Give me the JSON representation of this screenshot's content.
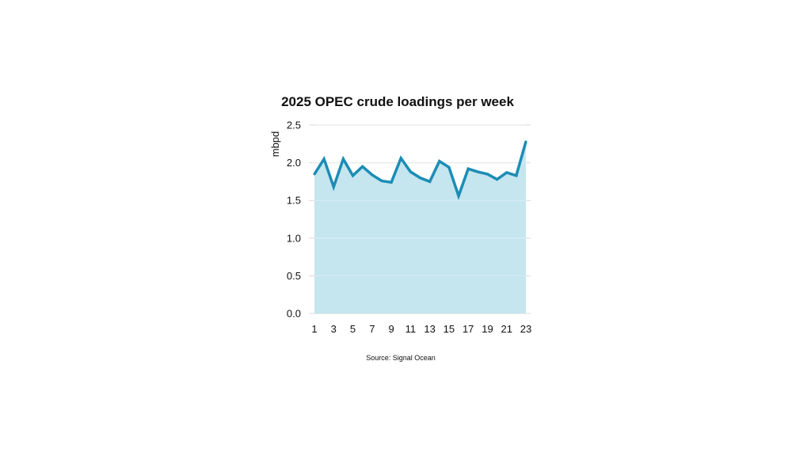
{
  "colors": {
    "line": "#1b8db5",
    "area": "#c5e5ef",
    "grid": "#d9d9d9",
    "text": "#111111"
  },
  "chart_data": {
    "type": "area",
    "title": "2025 OPEC crude loadings per week",
    "xlabel": "",
    "ylabel": "mbpd",
    "source": "Source: Signal Ocean",
    "x": [
      1,
      2,
      3,
      4,
      5,
      6,
      7,
      8,
      9,
      10,
      11,
      12,
      13,
      14,
      15,
      16,
      17,
      18,
      19,
      20,
      21,
      22,
      23
    ],
    "x_tick_labels": [
      "1",
      "3",
      "5",
      "7",
      "9",
      "11",
      "13",
      "15",
      "17",
      "19",
      "21",
      "23"
    ],
    "series": [
      {
        "values": [
          1.85,
          2.05,
          1.68,
          2.05,
          1.83,
          1.95,
          1.84,
          1.76,
          1.74,
          2.06,
          1.88,
          1.8,
          1.75,
          2.02,
          1.94,
          1.56,
          1.92,
          1.88,
          1.85,
          1.78,
          1.87,
          1.83,
          2.28
        ]
      }
    ],
    "ylim": [
      0,
      2.5
    ],
    "y_ticks": [
      "0.0",
      "0.5",
      "1.0",
      "1.5",
      "2.0",
      "2.5"
    ],
    "grid": true,
    "legend": "none"
  }
}
